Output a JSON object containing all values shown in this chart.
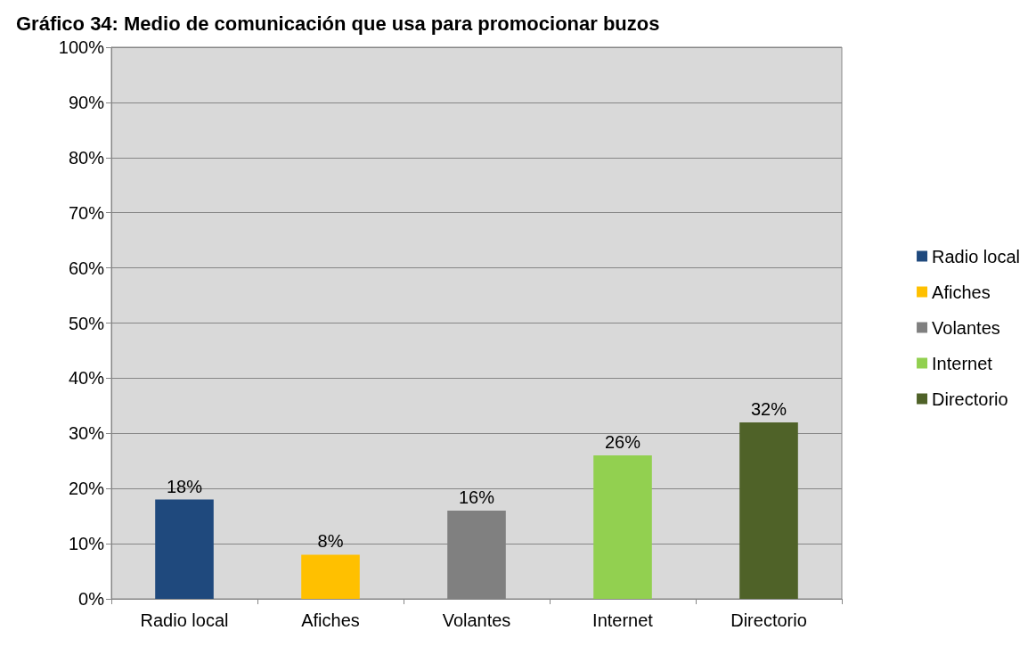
{
  "chart_data": {
    "type": "bar",
    "title": "Gráfico 34: Medio de comunicación que usa para promocionar buzos",
    "categories": [
      "Radio local",
      "Afiches",
      "Volantes",
      "Internet",
      "Directorio"
    ],
    "series": [
      {
        "name": "Radio local",
        "color": "#1f497d",
        "values": [
          18,
          null,
          null,
          null,
          null
        ],
        "value_labels": [
          "18%",
          null,
          null,
          null,
          null
        ]
      },
      {
        "name": "Afiches",
        "color": "#ffc000",
        "values": [
          null,
          8,
          null,
          null,
          null
        ],
        "value_labels": [
          null,
          "8%",
          null,
          null,
          null
        ]
      },
      {
        "name": "Volantes",
        "color": "#808080",
        "values": [
          null,
          null,
          16,
          null,
          null
        ],
        "value_labels": [
          null,
          null,
          "16%",
          null,
          null
        ]
      },
      {
        "name": "Internet",
        "color": "#92d050",
        "values": [
          null,
          null,
          null,
          26,
          null
        ],
        "value_labels": [
          null,
          null,
          null,
          "26%",
          null
        ]
      },
      {
        "name": "Directorio",
        "color": "#4f6228",
        "values": [
          null,
          null,
          null,
          null,
          32
        ],
        "value_labels": [
          null,
          null,
          null,
          null,
          "32%"
        ]
      }
    ],
    "ylim": [
      0,
      100
    ],
    "yticks": [
      {
        "value": 0,
        "label": "0%"
      },
      {
        "value": 10,
        "label": "10%"
      },
      {
        "value": 20,
        "label": "20%"
      },
      {
        "value": 30,
        "label": "30%"
      },
      {
        "value": 40,
        "label": "40%"
      },
      {
        "value": 50,
        "label": "50%"
      },
      {
        "value": 60,
        "label": "60%"
      },
      {
        "value": 70,
        "label": "70%"
      },
      {
        "value": 80,
        "label": "80%"
      },
      {
        "value": 90,
        "label": "90%"
      },
      {
        "value": 100,
        "label": "100%"
      }
    ],
    "grid": "y",
    "legend": "right"
  }
}
